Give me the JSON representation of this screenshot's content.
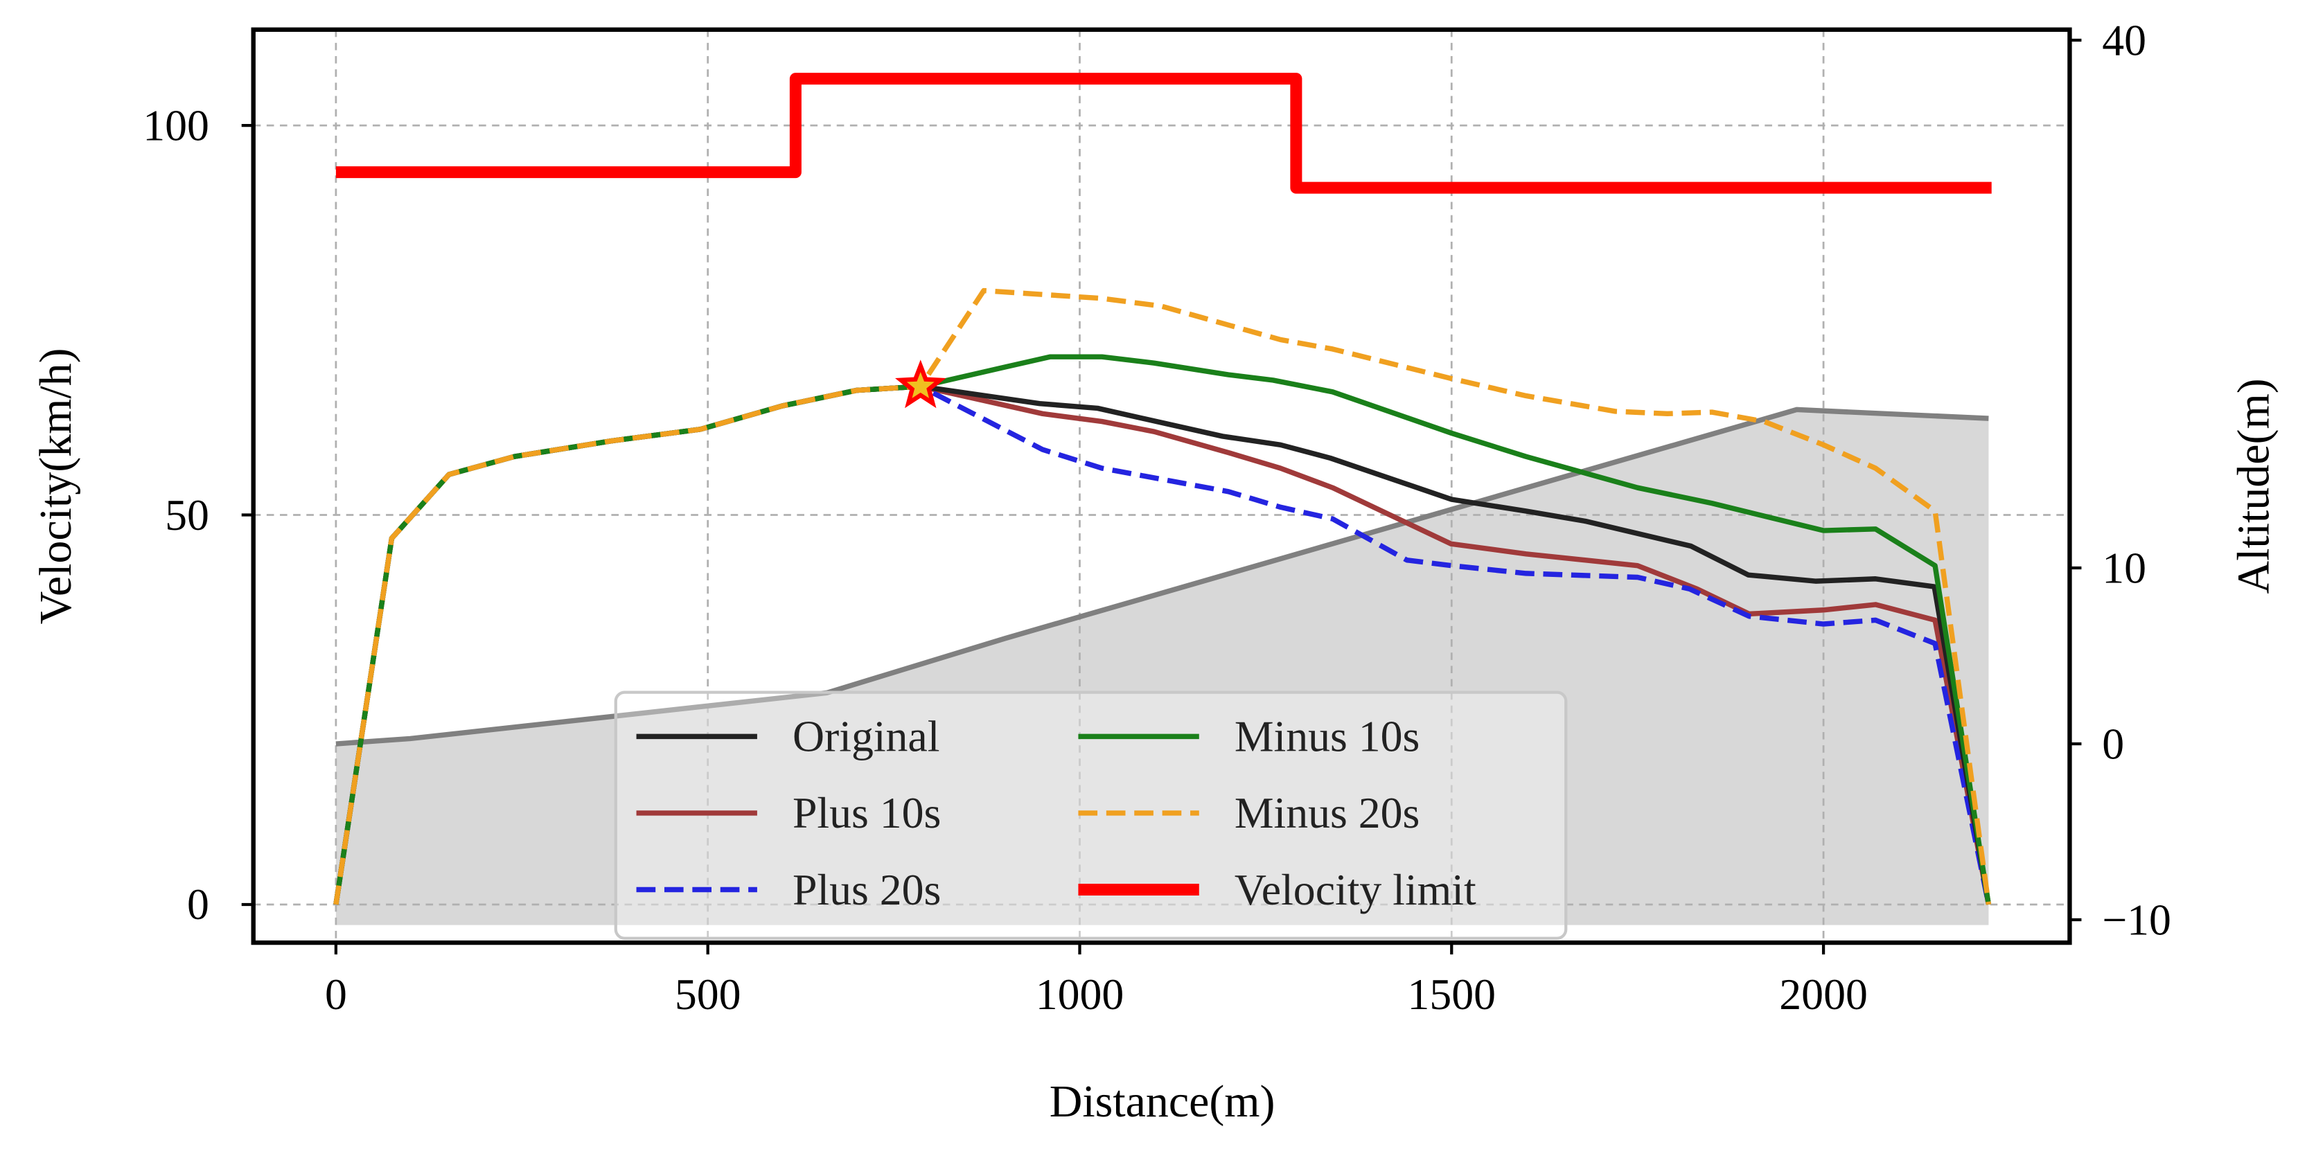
{
  "chart_data": {
    "type": "line",
    "xlabel": "Distance(m)",
    "ylabel": "Velocity(km/h)",
    "y2label": "Altitude(m)",
    "xlim": [
      -111,
      2331
    ],
    "ylim": [
      -4.9,
      112.3
    ],
    "y2lim": [
      -11.3,
      40.6
    ],
    "xticks": [
      0,
      500,
      1000,
      1500,
      2000
    ],
    "yticks": [
      0,
      50,
      100
    ],
    "y2ticks": [
      -10,
      0,
      10,
      40
    ],
    "grid": true,
    "legend_position": "bottom-center",
    "series": [
      {
        "name": "Original",
        "color": "#222222",
        "dash": "solid",
        "x": [
          0,
          75,
          152,
          240,
          370,
          490,
          600,
          700,
          786,
          946,
          1024,
          1192,
          1270,
          1337,
          1500,
          1600,
          1680,
          1822,
          1899,
          1990,
          2070,
          2149,
          2222
        ],
        "y": [
          0,
          47,
          55.2,
          57.5,
          59.5,
          61,
          64,
          66,
          66.5,
          64.3,
          63.7,
          60.1,
          59,
          57.3,
          52,
          50.5,
          49.2,
          46,
          42.3,
          41.5,
          41.8,
          40.8,
          0
        ]
      },
      {
        "name": "Plus 10s",
        "color": "#a03a3a",
        "dash": "solid",
        "x": [
          0,
          75,
          152,
          240,
          370,
          490,
          600,
          700,
          786,
          950,
          1030,
          1100,
          1200,
          1270,
          1340,
          1499,
          1600,
          1750,
          1830,
          1900,
          2000,
          2070,
          2150,
          2222
        ],
        "y": [
          0,
          47,
          55.2,
          57.5,
          59.5,
          61,
          64,
          66,
          66.5,
          63,
          62,
          60.7,
          58,
          56,
          53.5,
          46.3,
          45,
          43.5,
          40.5,
          37.3,
          37.8,
          38.5,
          36.5,
          0
        ]
      },
      {
        "name": "Plus 20s",
        "color": "#2424e0",
        "dash": "dashed",
        "x": [
          0,
          75,
          152,
          240,
          370,
          490,
          600,
          700,
          786,
          950,
          1030,
          1200,
          1270,
          1340,
          1440,
          1500,
          1600,
          1750,
          1820,
          1900,
          2000,
          2070,
          2150,
          2222
        ],
        "y": [
          0,
          47,
          55.2,
          57.5,
          59.5,
          61,
          64,
          66,
          66.5,
          58.4,
          56,
          53,
          51,
          49.5,
          44.2,
          43.5,
          42.5,
          42,
          40.5,
          37,
          36,
          36.5,
          33.5,
          0
        ]
      },
      {
        "name": "Minus 10s",
        "color": "#1a801a",
        "dash": "solid",
        "x": [
          0,
          75,
          152,
          240,
          370,
          490,
          600,
          700,
          786,
          900,
          960,
          1030,
          1100,
          1200,
          1260,
          1340,
          1500,
          1600,
          1750,
          1850,
          2000,
          2070,
          2150,
          2222
        ],
        "y": [
          0,
          47,
          55.2,
          57.5,
          59.5,
          61,
          64,
          66,
          66.5,
          69,
          70.3,
          70.3,
          69.5,
          68,
          67.3,
          65.8,
          60.5,
          57.5,
          53.5,
          51.5,
          48,
          48.2,
          43.5,
          0
        ]
      },
      {
        "name": "Minus 20s",
        "color": "#f0a020",
        "dash": "dashed",
        "x": [
          0,
          75,
          152,
          240,
          370,
          490,
          600,
          700,
          786,
          871,
          950,
          1030,
          1110,
          1270,
          1340,
          1500,
          1600,
          1720,
          1790,
          1850,
          1920,
          2000,
          2070,
          2150,
          2222
        ],
        "y": [
          0,
          47,
          55.2,
          57.5,
          59.5,
          61,
          64,
          66,
          66.5,
          78.8,
          78.3,
          77.8,
          76.8,
          72.5,
          71.3,
          67.5,
          65.3,
          63.3,
          63,
          63.2,
          62,
          59,
          56,
          50.5,
          0
        ]
      },
      {
        "name": "Velocity limit",
        "color": "#ff0000",
        "dash": "solid",
        "step": true,
        "x": [
          0,
          618,
          618,
          1291,
          1291,
          2226
        ],
        "y": [
          94,
          94,
          106,
          106,
          92,
          92
        ]
      }
    ],
    "altitude": {
      "color": "#808080",
      "fill": "#d8d8d8",
      "x": [
        0,
        100,
        660,
        900,
        1964,
        2222
      ],
      "y": [
        0,
        0.3,
        2.9,
        6,
        19,
        18.5
      ],
      "fill_base": -10.3
    },
    "marker": {
      "shape": "star",
      "color": "#ff0000",
      "x": 786,
      "y": 66.5
    }
  }
}
